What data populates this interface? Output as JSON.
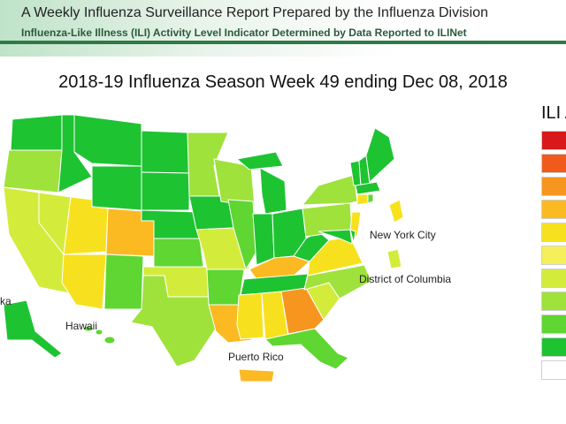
{
  "header": {
    "title": "A Weekly Influenza Surveillance Report Prepared by the Influenza Division",
    "subtitle": "Influenza-Like Illness (ILI) Activity Level Indicator Determined by Data Reported to ILINet"
  },
  "map_title": "2018-19 Influenza Season Week 49 ending Dec 08, 2018",
  "labels": {
    "alaska": "ka",
    "hawaii": "Hawaii",
    "puerto_rico": "Puerto Rico",
    "new_york_city": "New York City",
    "dc": "District of Columbia"
  },
  "legend": {
    "title": "ILI A",
    "swatch_colors": [
      "#d7191c",
      "#f05a1a",
      "#f6961f",
      "#fbb922",
      "#f7e11e",
      "#f5f05a",
      "#d3ec3c",
      "#9fe23b",
      "#5fd631",
      "#1ec332",
      "#ffffff"
    ]
  },
  "colors": {
    "minimal_dark": "#1ec332",
    "minimal": "#5fd631",
    "low_light": "#9fe23b",
    "low": "#d3ec3c",
    "moderate_light": "#f5f05a",
    "moderate": "#f7e11e",
    "high_light": "#fbb922",
    "high": "#f6961f"
  }
}
